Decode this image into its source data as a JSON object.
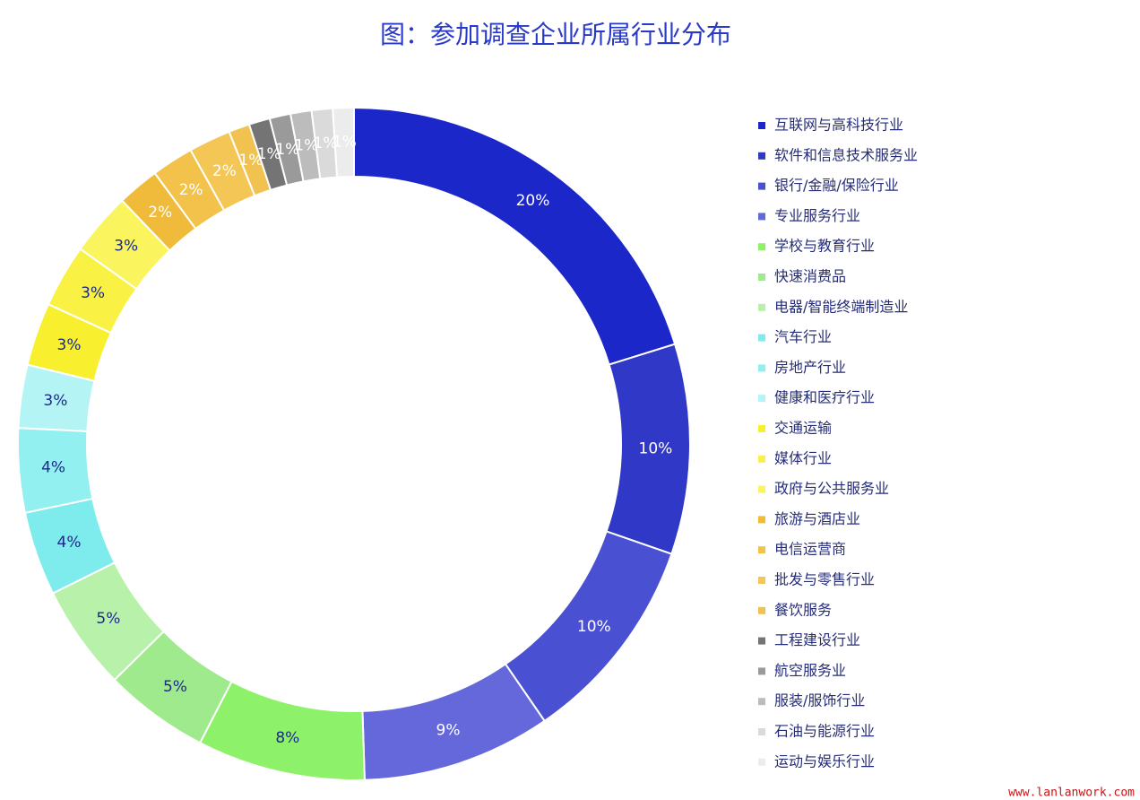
{
  "chart_data": {
    "type": "donut",
    "title": "图：参加调查企业所属行业分布",
    "categories": [
      "互联网与高科技行业",
      "软件和信息技术服务业",
      "银行/金融/保险行业",
      "专业服务行业",
      "学校与教育行业",
      "快速消费品",
      "电器/智能终端制造业",
      "汽车行业",
      "房地产行业",
      "健康和医疗行业",
      "交通运输",
      "媒体行业",
      "政府与公共服务业",
      "旅游与酒店业",
      "电信运营商",
      "批发与零售行业",
      "餐饮服务",
      "工程建设行业",
      "航空服务业",
      "服装/服饰行业",
      "石油与能源行业",
      "运动与娱乐行业"
    ],
    "values": [
      20,
      10,
      10,
      9,
      8,
      5,
      5,
      4,
      4,
      3,
      3,
      3,
      3,
      2,
      2,
      2,
      1,
      1,
      1,
      1,
      1,
      1
    ],
    "value_labels": [
      "20%",
      "10%",
      "10%",
      "9%",
      "8%",
      "5%",
      "5%",
      "4%",
      "4%",
      "3%",
      "3%",
      "3%",
      "3%",
      "2%",
      "2%",
      "2%",
      "1%",
      "1%",
      "1%",
      "1%",
      "1%",
      "1%"
    ],
    "colors": [
      "#1b27c9",
      "#3038c8",
      "#4a50d2",
      "#6468da",
      "#8df26a",
      "#9eea8c",
      "#b8f2aa",
      "#7eecec",
      "#92f0f0",
      "#b4f4f4",
      "#f8f02e",
      "#f9f244",
      "#faf45e",
      "#f0bb3a",
      "#f2c24a",
      "#f3c655",
      "#f2c250",
      "#747474",
      "#9a9a9a",
      "#bcbcbc",
      "#dadada",
      "#ececec"
    ],
    "label_colors": [
      "#ffffff",
      "#ffffff",
      "#ffffff",
      "#ffffff",
      "#1b2a8a",
      "#1b2a8a",
      "#1b2a8a",
      "#1b2a8a",
      "#1b2a8a",
      "#1b2a8a",
      "#1b2a8a",
      "#1b2a8a",
      "#1b2a8a",
      "#ffffff",
      "#ffffff",
      "#ffffff",
      "#ffffff",
      "#ffffff",
      "#ffffff",
      "#ffffff",
      "#ffffff",
      "#ffffff"
    ],
    "legend": "right"
  },
  "watermark": "www.lanlanwork.com"
}
